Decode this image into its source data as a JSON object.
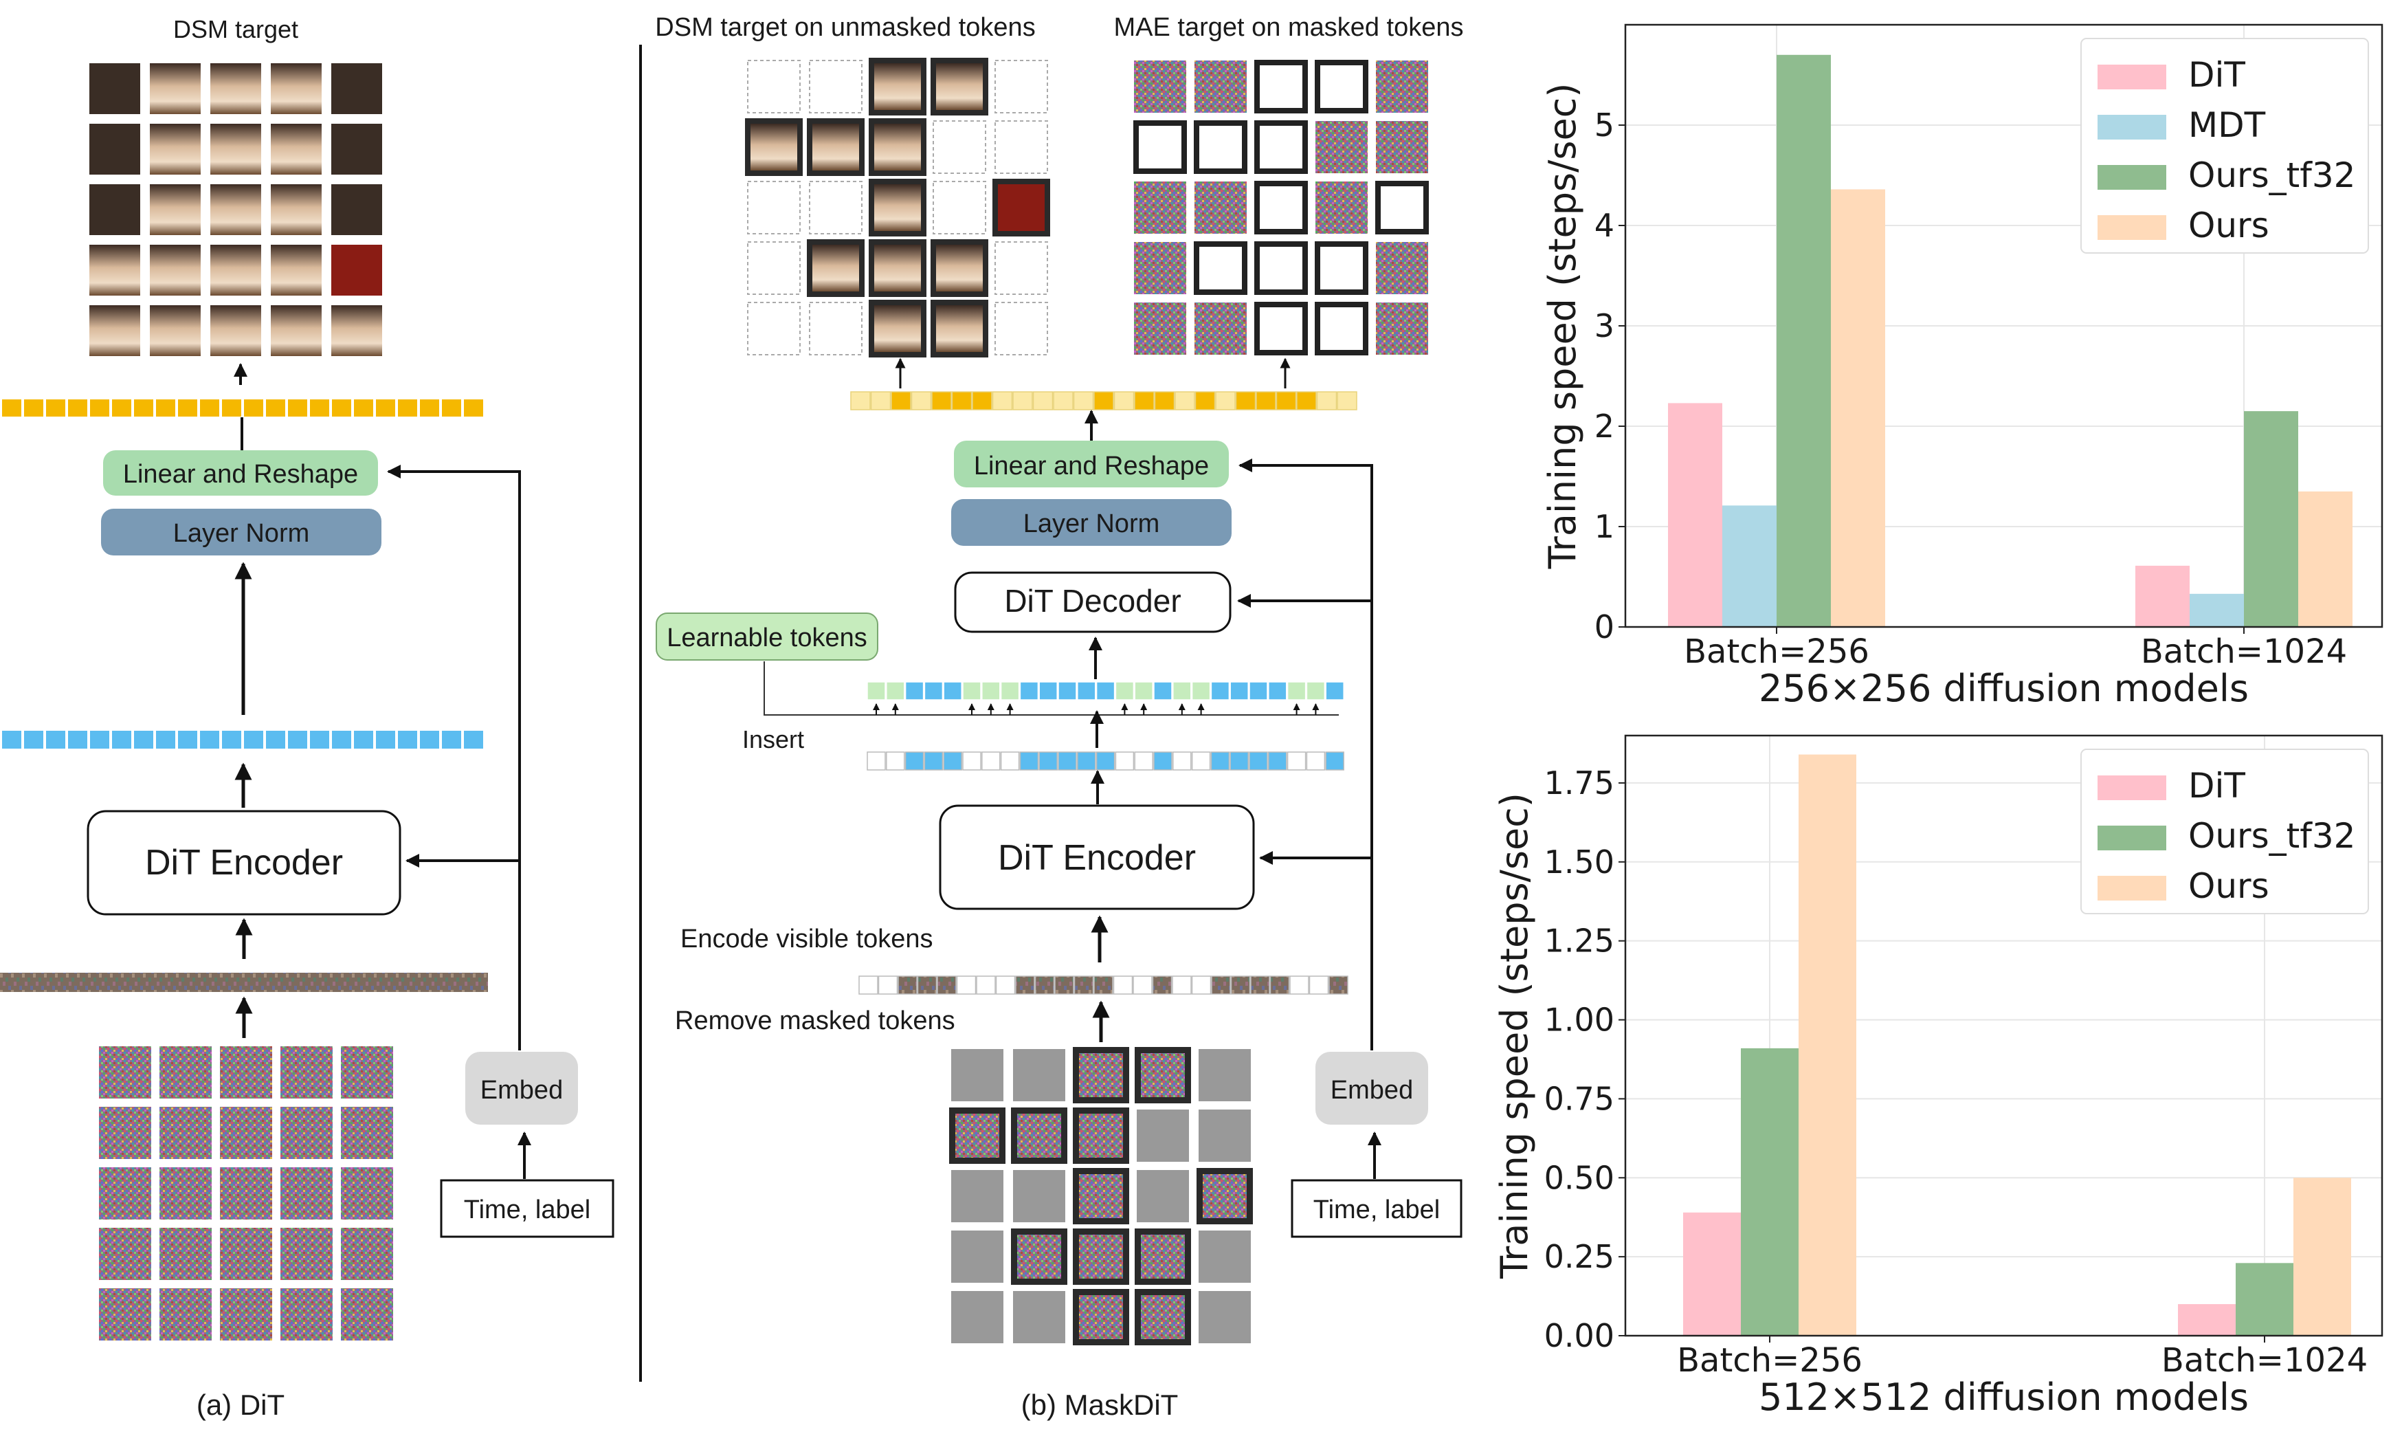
{
  "panel_a": {
    "top_label": "DSM target",
    "linear_reshape": "Linear and Reshape",
    "layer_norm": "Layer Norm",
    "encoder": "DiT Encoder",
    "embed": "Embed",
    "time_label": "Time, label",
    "caption": "(a) DiT"
  },
  "panel_b": {
    "dsm_label": "DSM target on unmasked tokens",
    "mae_label": "MAE target on masked tokens",
    "linear_reshape": "Linear and Reshape",
    "layer_norm": "Layer Norm",
    "decoder": "DiT Decoder",
    "learnable": "Learnable tokens",
    "insert": "Insert",
    "encoder": "DiT Encoder",
    "encode_visible": "Encode visible tokens",
    "remove_masked": "Remove masked tokens",
    "embed": "Embed",
    "time_label": "Time, label",
    "caption": "(b) MaskDiT"
  },
  "colors": {
    "dit": "#ffc0cb",
    "mdt": "#add8e6",
    "ours_tf32": "#8fbc8f",
    "ours": "#ffdab9",
    "linear_box": "#a8dcae",
    "layer_norm_box": "#7a9ab5",
    "token_yellow": "#f5b800",
    "token_yellow_light": "#fbe9a6",
    "token_blue": "#5bbcf0",
    "token_green": "#c6ecbd"
  },
  "chart_data": [
    {
      "type": "bar",
      "title": "",
      "xlabel": "256×256 diffusion models",
      "ylabel": "Training speed (steps/sec)",
      "categories": [
        "Batch=256",
        "Batch=1024"
      ],
      "ylim": [
        0,
        6
      ],
      "yticks": [
        0,
        1,
        2,
        3,
        4,
        5
      ],
      "ytick_labels": [
        "0",
        "1",
        "2",
        "3",
        "4",
        "5"
      ],
      "grid": true,
      "legend": "top-right",
      "series": [
        {
          "name": "DiT",
          "color": "#ffc0cb",
          "values": [
            2.23,
            0.61
          ]
        },
        {
          "name": "MDT",
          "color": "#add8e6",
          "values": [
            1.21,
            0.33
          ]
        },
        {
          "name": "Ours_tf32",
          "color": "#8fbc8f",
          "values": [
            5.7,
            2.15
          ]
        },
        {
          "name": "Ours",
          "color": "#ffdab9",
          "values": [
            4.36,
            1.35
          ]
        }
      ]
    },
    {
      "type": "bar",
      "title": "",
      "xlabel": "512×512 diffusion models",
      "ylabel": "Training speed (steps/sec)",
      "categories": [
        "Batch=256",
        "Batch=1024"
      ],
      "ylim": [
        0,
        1.9
      ],
      "yticks": [
        0,
        0.25,
        0.5,
        0.75,
        1.0,
        1.25,
        1.5,
        1.75
      ],
      "ytick_labels": [
        "0.00",
        "0.25",
        "0.50",
        "0.75",
        "1.00",
        "1.25",
        "1.50",
        "1.75"
      ],
      "grid": true,
      "legend": "top-right",
      "series": [
        {
          "name": "DiT",
          "color": "#ffc0cb",
          "values": [
            0.39,
            0.1
          ]
        },
        {
          "name": "Ours_tf32",
          "color": "#8fbc8f",
          "values": [
            0.91,
            0.23
          ]
        },
        {
          "name": "Ours",
          "color": "#ffdab9",
          "values": [
            1.84,
            0.5
          ]
        }
      ]
    }
  ]
}
